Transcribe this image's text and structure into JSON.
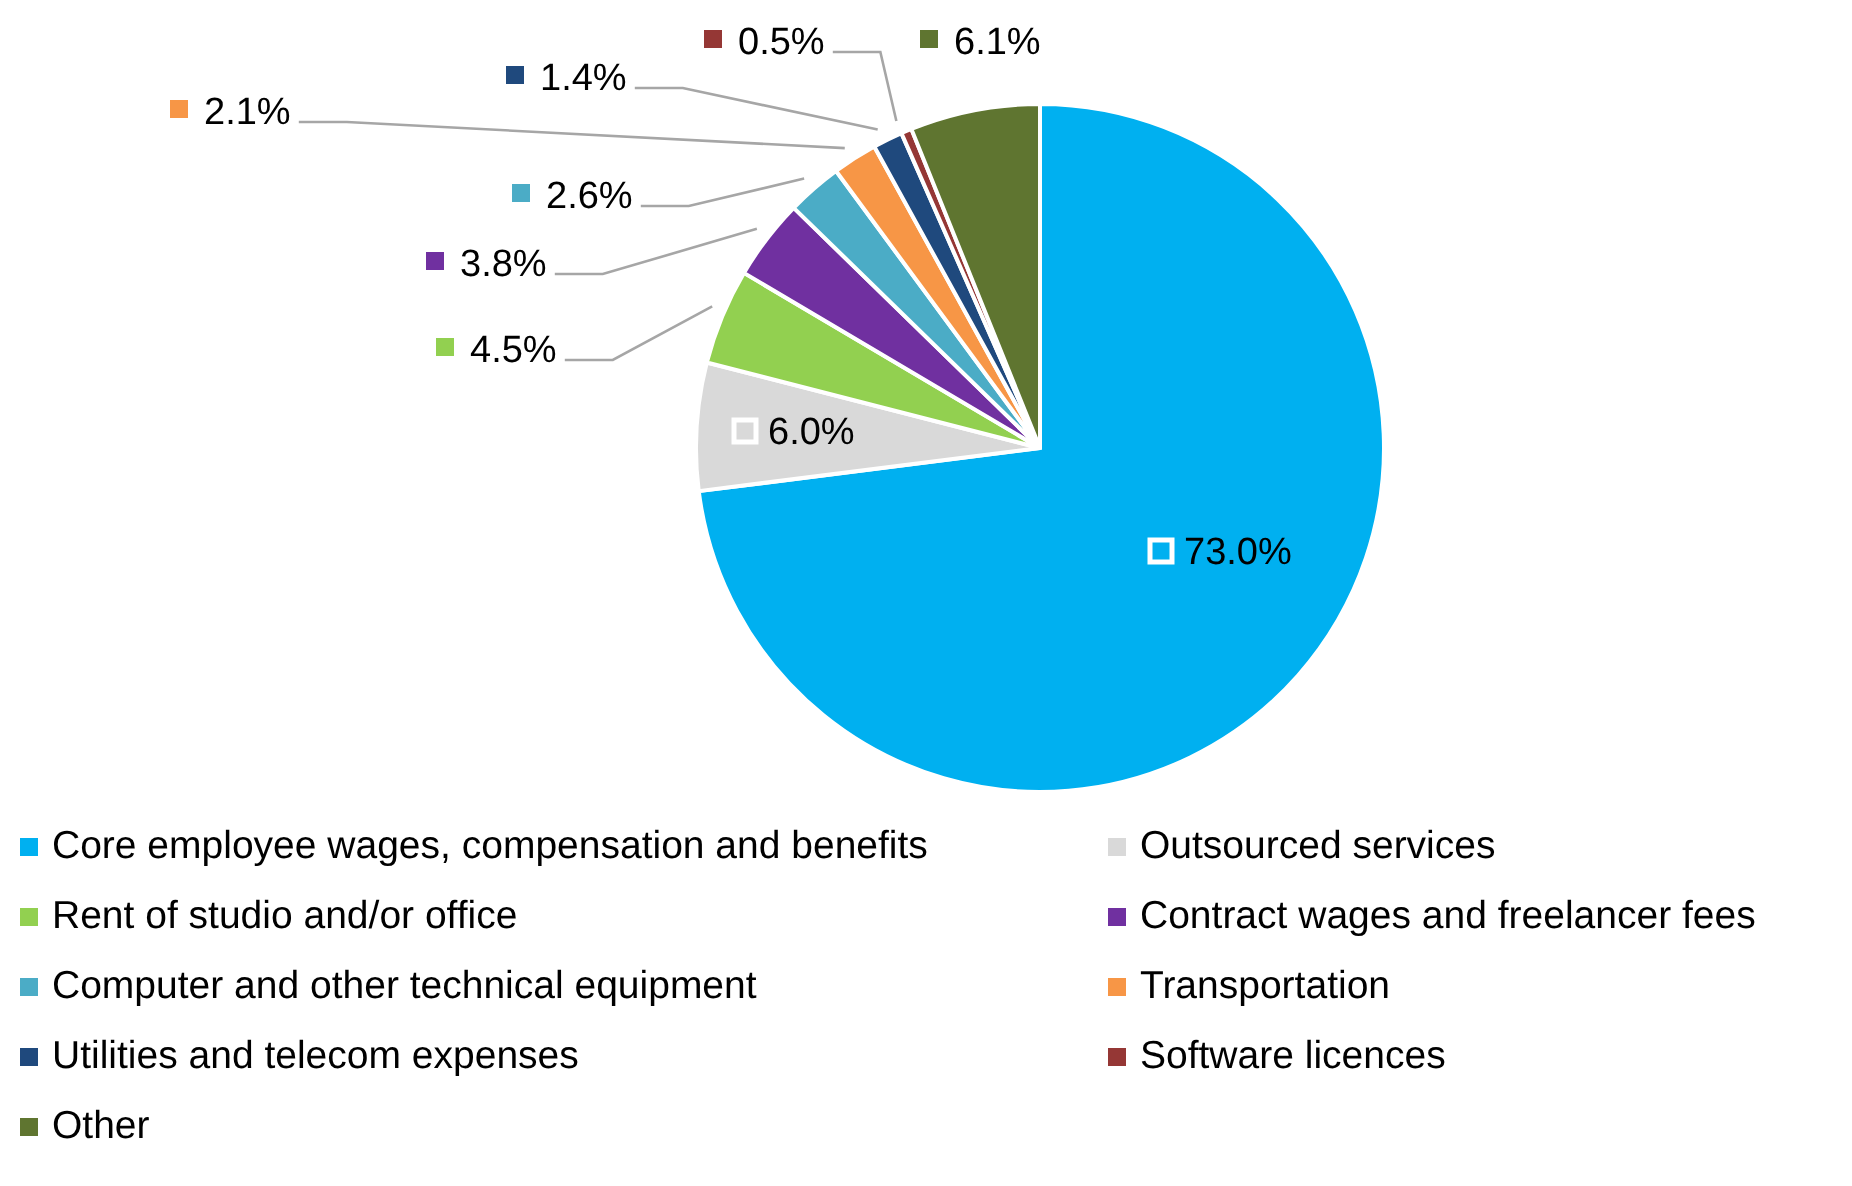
{
  "chart_data": {
    "type": "pie",
    "categories": [
      "Core employee wages, compensation and benefits",
      "Outsourced services",
      "Rent of studio and/or office",
      "Contract wages and freelancer fees",
      "Computer and other technical equipment",
      "Transportation",
      "Utilities and telecom expenses",
      "Software licences",
      "Other"
    ],
    "values": [
      73.0,
      6.0,
      4.5,
      3.8,
      2.6,
      2.1,
      1.4,
      0.5,
      6.1
    ],
    "colors": [
      "#00b0f0",
      "#d9d9d9",
      "#92d050",
      "#7030a0",
      "#4bacc6",
      "#f79646",
      "#1f497d",
      "#953735",
      "#5f7530"
    ],
    "value_labels": [
      "73.0%",
      "6.0%",
      "4.5%",
      "3.8%",
      "2.6%",
      "2.1%",
      "1.4%",
      "0.5%",
      "6.1%"
    ],
    "legend": "bottom"
  }
}
